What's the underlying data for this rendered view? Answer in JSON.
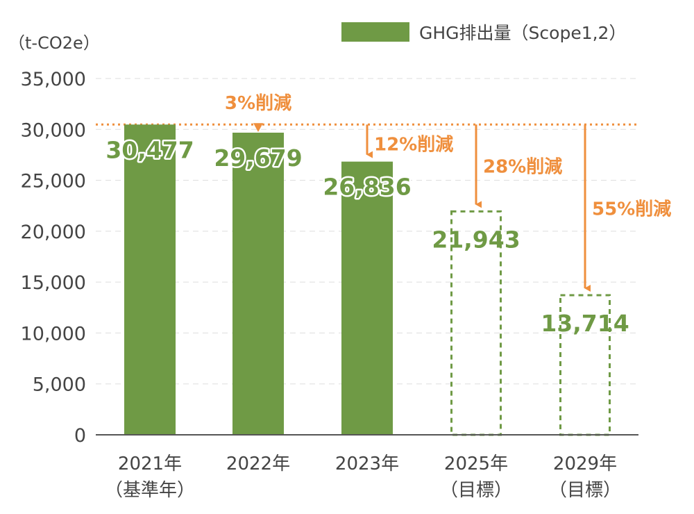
{
  "colors": {
    "bar": "#6f9a45",
    "target_outline": "#6f9a45",
    "reduction": "#ef8f3d",
    "grid": "#dddddd",
    "axis": "#555555",
    "text": "#444444"
  },
  "chart_data": {
    "type": "bar",
    "unit_label": "（t-CO2e）",
    "legend": "GHG排出量（Scope1,2）",
    "legend_placement": "top-right",
    "grid": true,
    "ylim": [
      0,
      35000
    ],
    "yticks": [
      "0",
      "5,000",
      "10,000",
      "15,000",
      "20,000",
      "25,000",
      "30,000",
      "35,000"
    ],
    "ytick_values": [
      0,
      5000,
      10000,
      15000,
      20000,
      25000,
      30000,
      35000
    ],
    "categories": [
      {
        "year": "2021年",
        "note": "（基準年）"
      },
      {
        "year": "2022年",
        "note": ""
      },
      {
        "year": "2023年",
        "note": ""
      },
      {
        "year": "2025年",
        "note": "（目標）"
      },
      {
        "year": "2029年",
        "note": "（目標）"
      }
    ],
    "series": [
      {
        "name": "GHG排出量（Scope1,2）",
        "values": [
          30477,
          29679,
          26836,
          21943,
          13714
        ],
        "labels": [
          "30,477",
          "29,679",
          "26,836",
          "21,943",
          "13,714"
        ],
        "is_target": [
          false,
          false,
          false,
          true,
          true
        ]
      }
    ],
    "baseline_value": 30477,
    "reductions": [
      {
        "target_index": 1,
        "label": "3%削減"
      },
      {
        "target_index": 2,
        "label": "12%削減"
      },
      {
        "target_index": 3,
        "label": "28%削減"
      },
      {
        "target_index": 4,
        "label": "55%削減"
      }
    ]
  }
}
